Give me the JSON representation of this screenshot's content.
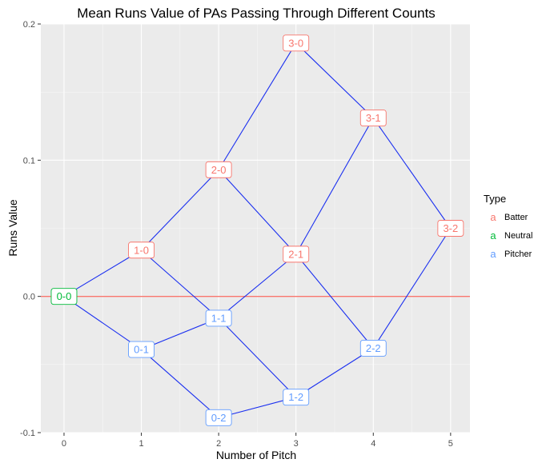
{
  "chart_data": {
    "type": "line",
    "title": "Mean Runs Value of PAs Passing Through Different Counts",
    "xlabel": "Number of Pitch",
    "ylabel": "Runs Value",
    "xlim": [
      -0.3,
      5.25
    ],
    "ylim": [
      -0.1,
      0.2
    ],
    "x_ticks": [
      0,
      1,
      2,
      3,
      4,
      5
    ],
    "y_ticks": [
      -0.1,
      0.0,
      0.1,
      0.2
    ],
    "x_tick_labels": [
      "0",
      "1",
      "2",
      "3",
      "4",
      "5"
    ],
    "y_tick_labels": [
      "-0.1",
      "0.0",
      "0.1",
      "0.2"
    ],
    "grid": true,
    "reference_line": {
      "y": 0.0,
      "color": "#F8766D"
    },
    "edge_color": "#1a2ff0",
    "legend": {
      "title": "Type",
      "placement": "right",
      "entries": [
        {
          "label": "Batter",
          "color": "#F8766D",
          "key": "a"
        },
        {
          "label": "Neutral",
          "color": "#00BA38",
          "key": "a"
        },
        {
          "label": "Pitcher",
          "color": "#619CFF",
          "key": "a"
        }
      ]
    },
    "points": [
      {
        "label": "0-0",
        "x": 0,
        "y": 0.0,
        "type": "Neutral"
      },
      {
        "label": "1-0",
        "x": 1,
        "y": 0.034,
        "type": "Batter"
      },
      {
        "label": "0-1",
        "x": 1,
        "y": -0.039,
        "type": "Pitcher"
      },
      {
        "label": "2-0",
        "x": 2,
        "y": 0.093,
        "type": "Batter"
      },
      {
        "label": "1-1",
        "x": 2,
        "y": -0.016,
        "type": "Pitcher"
      },
      {
        "label": "0-2",
        "x": 2,
        "y": -0.089,
        "type": "Pitcher"
      },
      {
        "label": "3-0",
        "x": 3,
        "y": 0.186,
        "type": "Batter"
      },
      {
        "label": "2-1",
        "x": 3,
        "y": 0.031,
        "type": "Batter"
      },
      {
        "label": "1-2",
        "x": 3,
        "y": -0.074,
        "type": "Pitcher"
      },
      {
        "label": "3-1",
        "x": 4,
        "y": 0.131,
        "type": "Batter"
      },
      {
        "label": "2-2",
        "x": 4,
        "y": -0.038,
        "type": "Pitcher"
      },
      {
        "label": "3-2",
        "x": 5,
        "y": 0.05,
        "type": "Batter"
      }
    ],
    "edges": [
      [
        "0-0",
        "1-0"
      ],
      [
        "0-0",
        "0-1"
      ],
      [
        "1-0",
        "2-0"
      ],
      [
        "1-0",
        "1-1"
      ],
      [
        "0-1",
        "1-1"
      ],
      [
        "0-1",
        "0-2"
      ],
      [
        "2-0",
        "3-0"
      ],
      [
        "2-0",
        "2-1"
      ],
      [
        "1-1",
        "2-1"
      ],
      [
        "1-1",
        "1-2"
      ],
      [
        "0-2",
        "1-2"
      ],
      [
        "3-0",
        "3-1"
      ],
      [
        "2-1",
        "3-1"
      ],
      [
        "2-1",
        "2-2"
      ],
      [
        "1-2",
        "2-2"
      ],
      [
        "3-1",
        "3-2"
      ],
      [
        "2-2",
        "3-2"
      ]
    ]
  }
}
